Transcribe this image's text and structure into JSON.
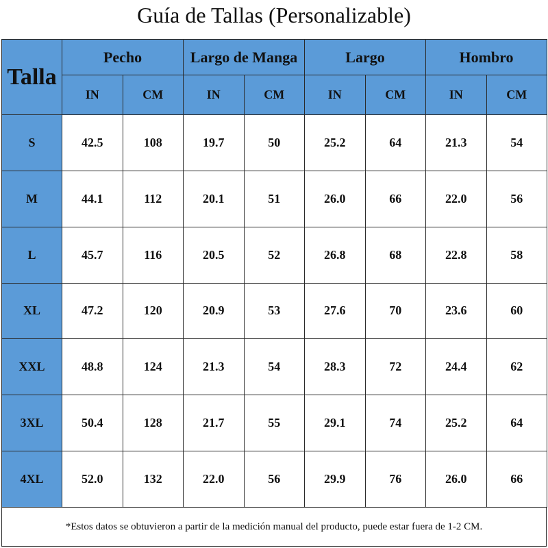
{
  "title": "Guía de Tallas (Personalizable)",
  "table": {
    "corner": "Talla",
    "groups": [
      "Pecho",
      "Largo de Manga",
      "Largo",
      "Hombro"
    ],
    "units": [
      "IN",
      "CM",
      "IN",
      "CM",
      "IN",
      "CM",
      "IN",
      "CM"
    ],
    "rows": [
      [
        "S",
        "42.5",
        "108",
        "19.7",
        "50",
        "25.2",
        "64",
        "21.3",
        "54"
      ],
      [
        "M",
        "44.1",
        "112",
        "20.1",
        "51",
        "26.0",
        "66",
        "22.0",
        "56"
      ],
      [
        "L",
        "45.7",
        "116",
        "20.5",
        "52",
        "26.8",
        "68",
        "22.8",
        "58"
      ],
      [
        "XL",
        "47.2",
        "120",
        "20.9",
        "53",
        "27.6",
        "70",
        "23.6",
        "60"
      ],
      [
        "XXL",
        "48.8",
        "124",
        "21.3",
        "54",
        "28.3",
        "72",
        "24.4",
        "62"
      ],
      [
        "3XL",
        "50.4",
        "128",
        "21.7",
        "55",
        "29.1",
        "74",
        "25.2",
        "64"
      ],
      [
        "4XL",
        "52.0",
        "132",
        "22.0",
        "56",
        "29.9",
        "76",
        "26.0",
        "66"
      ]
    ]
  },
  "footnote": "*Estos datos se obtuvieron a partir de la medición manual del producto, puede estar fuera de 1-2 CM."
}
